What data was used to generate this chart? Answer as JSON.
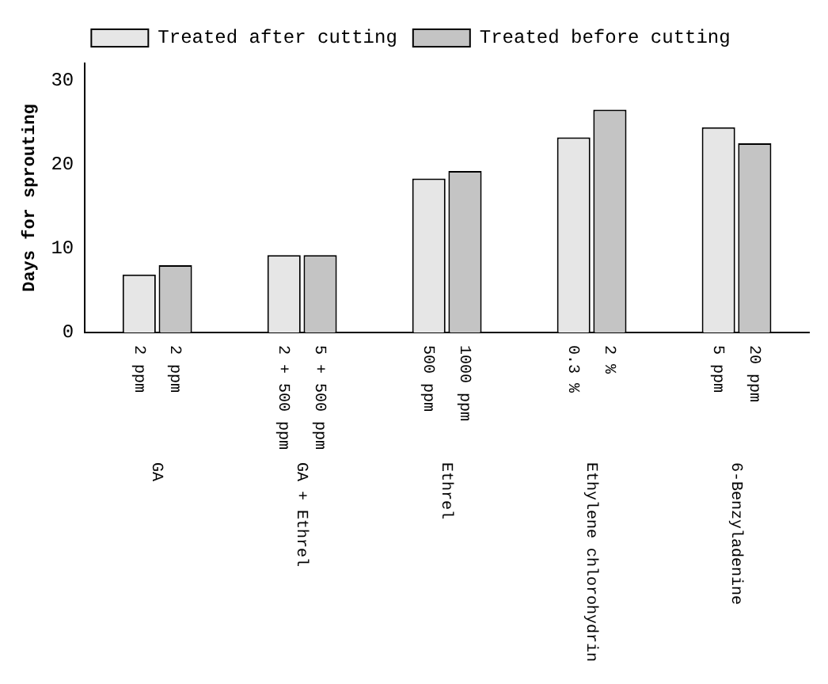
{
  "chart_data": {
    "type": "bar",
    "ylabel": "Days for sprouting",
    "categories": [
      null,
      "2 ppm",
      "2 ppm",
      null,
      null,
      "2 + 500 ppm",
      "5 + 500 ppm",
      null,
      null,
      "500 ppm",
      "1000 ppm",
      null,
      null,
      "0.3 %",
      "2 %",
      null,
      null,
      "5 ppm",
      "20 ppm",
      null
    ],
    "series": [
      {
        "name": "Treated after cutting",
        "color": "#e6e6e6",
        "values": [
          null,
          6.9,
          null,
          null,
          null,
          9.2,
          null,
          null,
          null,
          18.3,
          null,
          null,
          null,
          23.2,
          null,
          null,
          null,
          24.4,
          null,
          null
        ]
      },
      {
        "name": "Treated before cutting",
        "color": "#c4c4c4",
        "values": [
          null,
          null,
          8.0,
          null,
          null,
          null,
          9.2,
          null,
          null,
          null,
          19.2,
          null,
          null,
          null,
          26.5,
          null,
          null,
          null,
          22.5,
          null
        ]
      }
    ],
    "annotations": [
      "GA",
      "GA + Ethrel",
      "Ethrel",
      "Ethylene chlorohydrin",
      "6-Benzyladenine"
    ],
    "ylim": [
      0,
      32
    ],
    "yticks": [
      0,
      10,
      20,
      30
    ],
    "grid": false,
    "legend": "top"
  }
}
